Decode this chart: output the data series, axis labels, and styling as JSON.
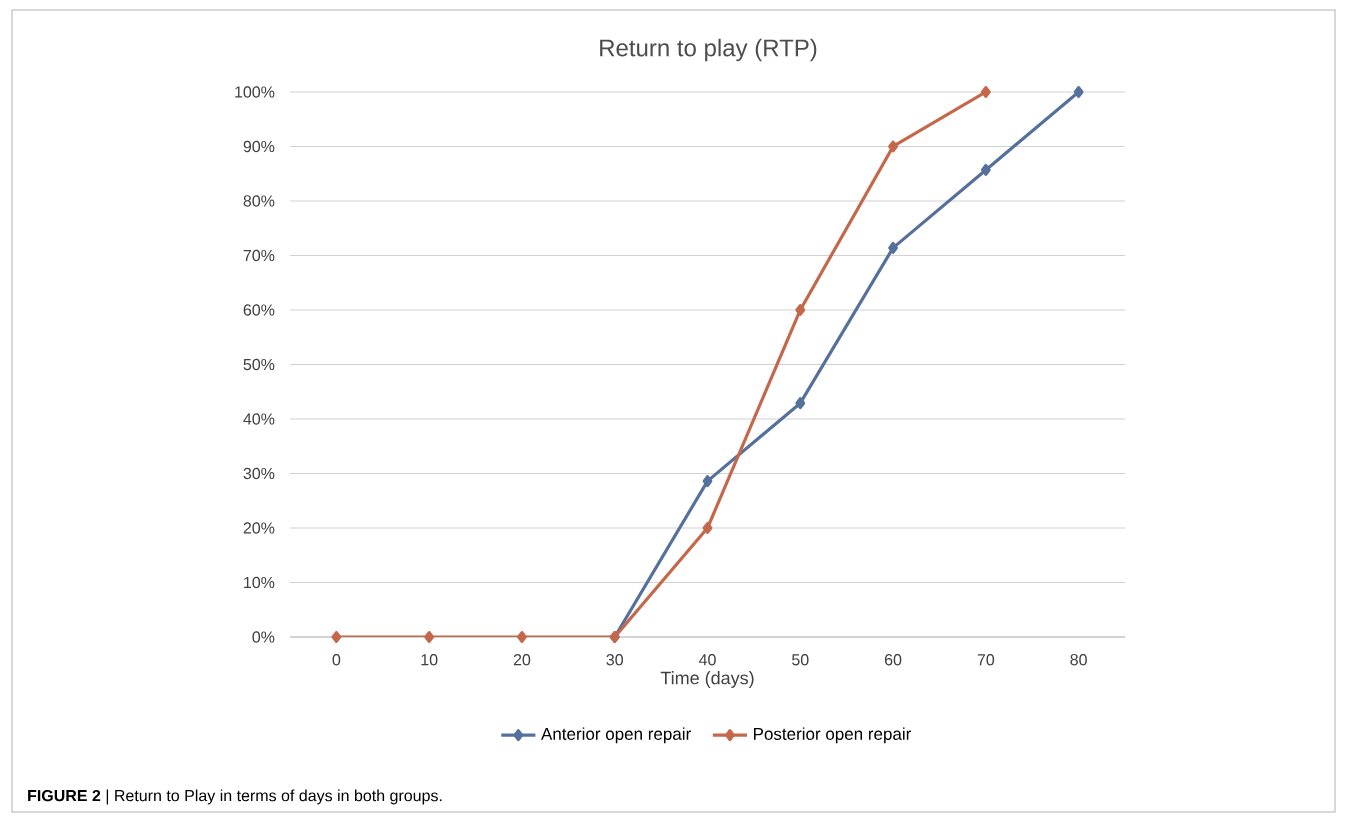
{
  "chart_data": {
    "type": "line",
    "title": "Return to play (RTP)",
    "xlabel": "Time (days)",
    "categories": [
      "0",
      "10",
      "20",
      "30",
      "40",
      "50",
      "60",
      "70",
      "80"
    ],
    "series": [
      {
        "name": "Anterior open repair",
        "color": "#56709c",
        "values": [
          null,
          null,
          null,
          0,
          28.6,
          42.9,
          71.4,
          85.7,
          100
        ]
      },
      {
        "name": "Posterior open repair",
        "color": "#c4674a",
        "values": [
          0,
          0,
          0,
          0,
          20,
          60,
          90,
          100,
          null
        ]
      }
    ],
    "ylim": [
      0,
      100
    ],
    "yticks": [
      {
        "value": 0,
        "label": "0%"
      },
      {
        "value": 10,
        "label": "10%"
      },
      {
        "value": 20,
        "label": "20%"
      },
      {
        "value": 30,
        "label": "30%"
      },
      {
        "value": 40,
        "label": "40%"
      },
      {
        "value": 50,
        "label": "50%"
      },
      {
        "value": 60,
        "label": "60%"
      },
      {
        "value": 70,
        "label": "70%"
      },
      {
        "value": 80,
        "label": "80%"
      },
      {
        "value": 90,
        "label": "90%"
      },
      {
        "value": 100,
        "label": "100%"
      }
    ],
    "grid": "y",
    "legend": "bottom",
    "marker": "diamond",
    "line_style": "solid",
    "annotations": [
      "**FIGURE 2** | Return to Play in terms of days in both groups."
    ]
  }
}
